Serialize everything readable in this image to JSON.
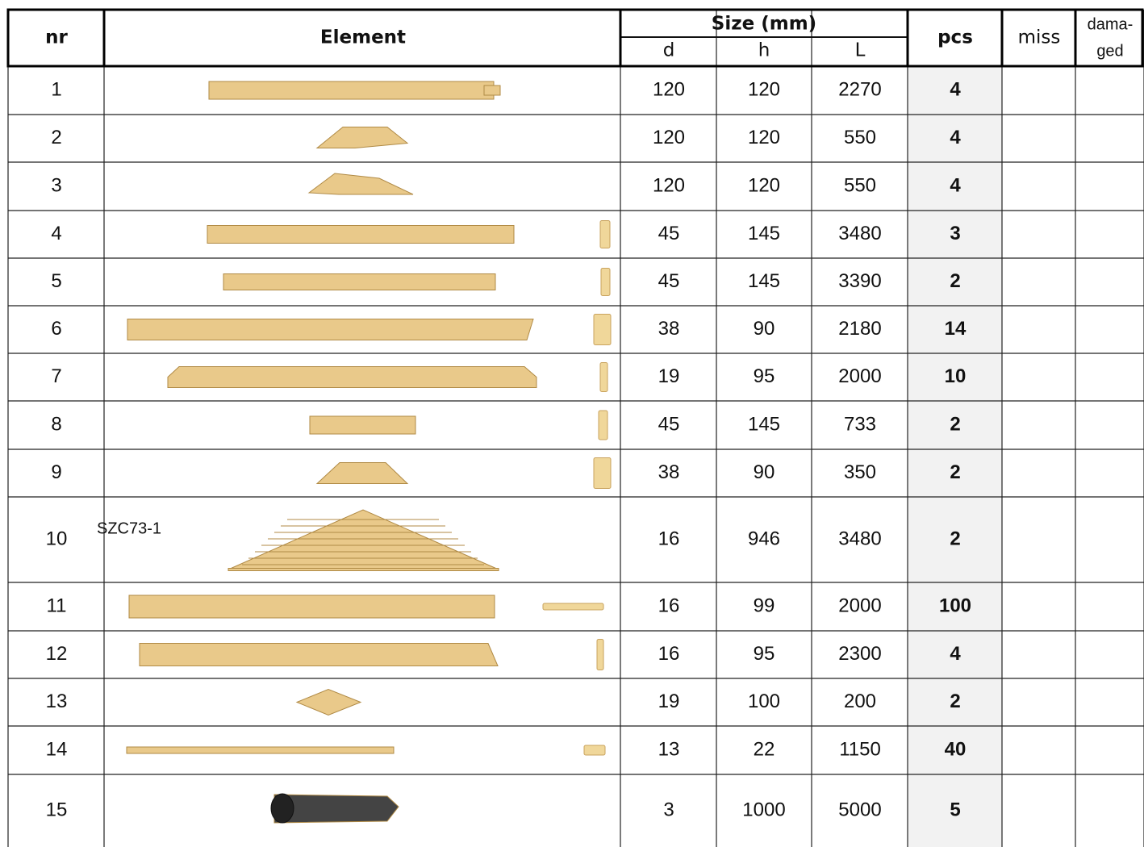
{
  "header": {
    "nr": "nr",
    "element": "Element",
    "size": "Size (mm)",
    "d": "d",
    "h": "h",
    "L": "L",
    "pcs": "pcs",
    "miss": "miss",
    "damaged": [
      "dama-",
      "ged"
    ]
  },
  "rows": [
    {
      "nr": 1,
      "d": 120,
      "h": 120,
      "L": 2270,
      "pcs": 4
    },
    {
      "nr": 2,
      "d": 120,
      "h": 120,
      "L": 550,
      "pcs": 4
    },
    {
      "nr": 3,
      "d": 120,
      "h": 120,
      "L": 550,
      "pcs": 4
    },
    {
      "nr": 4,
      "d": 45,
      "h": 145,
      "L": 3480,
      "pcs": 3
    },
    {
      "nr": 5,
      "d": 45,
      "h": 145,
      "L": 3390,
      "pcs": 2
    },
    {
      "nr": 6,
      "d": 38,
      "h": 90,
      "L": 2180,
      "pcs": 14
    },
    {
      "nr": 7,
      "d": 19,
      "h": 95,
      "L": 2000,
      "pcs": 10
    },
    {
      "nr": 8,
      "d": 45,
      "h": 145,
      "L": 733,
      "pcs": 2
    },
    {
      "nr": 9,
      "d": 38,
      "h": 90,
      "L": 350,
      "pcs": 2
    },
    {
      "nr": 10,
      "label": "SZC73-1",
      "d": 16,
      "h": 946,
      "L": 3480,
      "pcs": 2
    },
    {
      "nr": 11,
      "d": 16,
      "h": 99,
      "L": 2000,
      "pcs": 100
    },
    {
      "nr": 12,
      "d": 16,
      "h": 95,
      "L": 2300,
      "pcs": 4
    },
    {
      "nr": 13,
      "d": 19,
      "h": 100,
      "L": 200,
      "pcs": 2
    },
    {
      "nr": 14,
      "d": 13,
      "h": 22,
      "L": 1150,
      "pcs": 40
    },
    {
      "nr": 15,
      "d": 3,
      "h": 1000,
      "L": 5000,
      "pcs": 5
    }
  ]
}
